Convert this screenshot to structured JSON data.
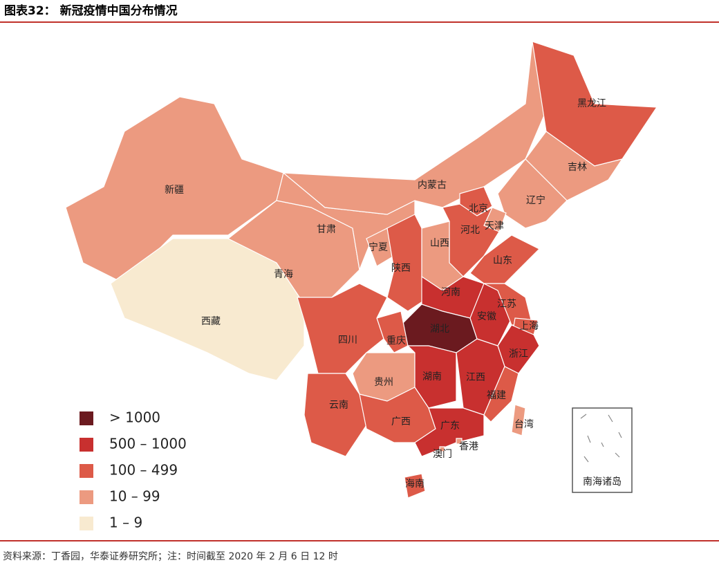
{
  "header": {
    "title": "图表32：  新冠疫情中国分布情况"
  },
  "legend": [
    {
      "label": "> 1000",
      "color": "#6b1a1f"
    },
    {
      "label": "500 – 1000",
      "color": "#c8302f"
    },
    {
      "label": "100 – 499",
      "color": "#dd5a48"
    },
    {
      "label": "10 – 99",
      "color": "#ec9a80"
    },
    {
      "label": "1 – 9",
      "color": "#f8ead0"
    }
  ],
  "regions": [
    {
      "label": "新疆",
      "level": 3
    },
    {
      "label": "西藏",
      "level": 4
    },
    {
      "label": "青海",
      "level": 3
    },
    {
      "label": "甘肃",
      "level": 3
    },
    {
      "label": "内蒙古",
      "level": 3
    },
    {
      "label": "黑龙江",
      "level": 2
    },
    {
      "label": "吉林",
      "level": 3
    },
    {
      "label": "辽宁",
      "level": 3
    },
    {
      "label": "北京",
      "level": 2
    },
    {
      "label": "天津",
      "level": 3
    },
    {
      "label": "河北",
      "level": 2
    },
    {
      "label": "山西",
      "level": 3
    },
    {
      "label": "宁夏",
      "level": 3
    },
    {
      "label": "陕西",
      "level": 2
    },
    {
      "label": "山东",
      "level": 2
    },
    {
      "label": "河南",
      "level": 1
    },
    {
      "label": "湖北",
      "level": 0
    },
    {
      "label": "安徽",
      "level": 1
    },
    {
      "label": "江苏",
      "level": 2
    },
    {
      "label": "上海",
      "level": 2
    },
    {
      "label": "浙江",
      "level": 1
    },
    {
      "label": "重庆",
      "level": 2
    },
    {
      "label": "四川",
      "level": 2
    },
    {
      "label": "贵州",
      "level": 3
    },
    {
      "label": "云南",
      "level": 2
    },
    {
      "label": "湖南",
      "level": 1
    },
    {
      "label": "江西",
      "level": 1
    },
    {
      "label": "福建",
      "level": 2
    },
    {
      "label": "广西",
      "level": 2
    },
    {
      "label": "广东",
      "level": 1
    },
    {
      "label": "海南",
      "level": 2
    },
    {
      "label": "台湾",
      "level": 3
    },
    {
      "label": "香港",
      "level": 3
    },
    {
      "label": "澳门",
      "level": 3
    }
  ],
  "inset": {
    "label": "南海诸岛"
  },
  "footer": {
    "source": "资料来源：丁香园，华泰证券研究所；注：时间截至 2020 年 2 月 6 日  12 时"
  }
}
